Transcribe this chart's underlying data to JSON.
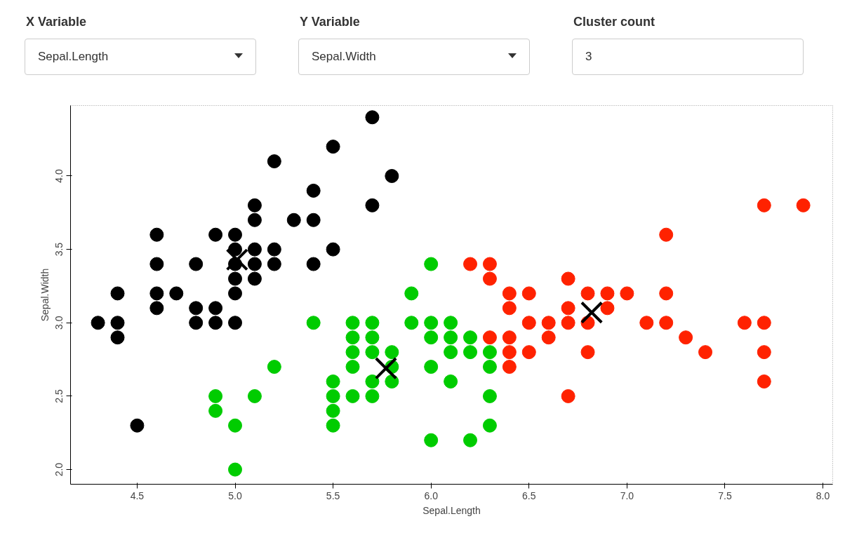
{
  "chart_data": {
    "type": "scatter",
    "xlabel": "Sepal.Length",
    "ylabel": "Sepal.Width",
    "annotations": [
      "X Variable",
      "Sepal.Length",
      "Y Variable",
      "Sepal.Width",
      "Cluster count",
      "3"
    ],
    "xlim": [
      4.16,
      8.05
    ],
    "ylim": [
      1.9,
      4.48
    ],
    "xticks": [
      4.5,
      {
        "value": 5,
        "label": "5.0"
      },
      5.5,
      {
        "value": 6,
        "label": "6.0"
      },
      6.5,
      {
        "value": 7,
        "label": "7.0"
      },
      7.5,
      {
        "value": 8,
        "label": "8.0"
      }
    ],
    "yticks": [
      {
        "value": 2,
        "label": "2.0"
      },
      2.5,
      {
        "value": 3,
        "label": "3.0"
      },
      3.5,
      {
        "value": 4,
        "label": "4.0"
      }
    ],
    "grid": false,
    "marker": "circle",
    "series": [
      {
        "color": "#000000",
        "x": [
          4.3,
          4.4,
          4.4,
          4.4,
          4.5,
          4.6,
          4.6,
          4.6,
          4.6,
          4.7,
          4.8,
          4.8,
          4.8,
          4.9,
          4.9,
          4.9,
          5.0,
          5.0,
          5.0,
          5.0,
          5.0,
          5.0,
          5.1,
          5.1,
          5.1,
          5.1,
          5.1,
          5.2,
          5.2,
          5.2,
          5.3,
          5.4,
          5.4,
          5.4,
          5.5,
          5.5,
          5.7,
          5.7,
          5.8
        ],
        "values": [
          3.0,
          3.2,
          3.0,
          2.9,
          2.3,
          3.6,
          3.4,
          3.2,
          3.1,
          3.2,
          3.4,
          3.1,
          3.0,
          3.6,
          3.1,
          3.0,
          3.6,
          3.5,
          3.4,
          3.3,
          3.2,
          3.0,
          3.8,
          3.7,
          3.5,
          3.4,
          3.3,
          4.1,
          3.5,
          3.4,
          3.7,
          3.9,
          3.7,
          3.4,
          4.2,
          3.5,
          4.4,
          3.8,
          4.0
        ]
      },
      {
        "color": "#00cc00",
        "x": [
          4.9,
          4.9,
          5.0,
          5.0,
          5.1,
          5.2,
          5.4,
          5.5,
          5.5,
          5.5,
          5.5,
          5.6,
          5.6,
          5.6,
          5.6,
          5.6,
          5.7,
          5.7,
          5.7,
          5.7,
          5.7,
          5.8,
          5.8,
          5.8,
          5.9,
          5.9,
          6.0,
          6.0,
          6.0,
          6.0,
          6.0,
          6.1,
          6.1,
          6.1,
          6.1,
          6.2,
          6.2,
          6.2,
          6.3,
          6.3,
          6.3,
          6.3
        ],
        "values": [
          2.5,
          2.4,
          2.3,
          2.0,
          2.5,
          2.7,
          3.0,
          2.6,
          2.5,
          2.4,
          2.3,
          3.0,
          2.9,
          2.8,
          2.7,
          2.5,
          3.0,
          2.9,
          2.8,
          2.6,
          2.5,
          2.8,
          2.7,
          2.6,
          3.2,
          3.0,
          3.4,
          3.0,
          2.9,
          2.7,
          2.2,
          3.0,
          2.9,
          2.8,
          2.6,
          2.9,
          2.8,
          2.2,
          2.8,
          2.7,
          2.5,
          2.3
        ]
      },
      {
        "color": "#ff2200",
        "x": [
          6.2,
          6.3,
          6.3,
          6.3,
          6.4,
          6.4,
          6.4,
          6.4,
          6.4,
          6.5,
          6.5,
          6.5,
          6.6,
          6.6,
          6.7,
          6.7,
          6.7,
          6.7,
          6.8,
          6.8,
          6.8,
          6.9,
          6.9,
          7.0,
          7.1,
          7.2,
          7.2,
          7.2,
          7.3,
          7.4,
          7.6,
          7.7,
          7.7,
          7.7,
          7.7,
          7.9
        ],
        "values": [
          3.4,
          3.4,
          3.3,
          2.9,
          3.2,
          3.1,
          2.9,
          2.8,
          2.7,
          3.2,
          3.0,
          2.8,
          3.0,
          2.9,
          3.3,
          3.1,
          3.0,
          2.5,
          3.2,
          3.0,
          2.8,
          3.2,
          3.1,
          3.2,
          3.0,
          3.6,
          3.2,
          3.0,
          2.9,
          2.8,
          3.0,
          3.8,
          3.0,
          2.8,
          2.6,
          3.8
        ]
      },
      {
        "color": "#000000",
        "marker": "cross",
        "x": [
          5.01,
          5.77,
          6.82
        ],
        "values": [
          3.43,
          2.69,
          3.07
        ]
      }
    ]
  }
}
